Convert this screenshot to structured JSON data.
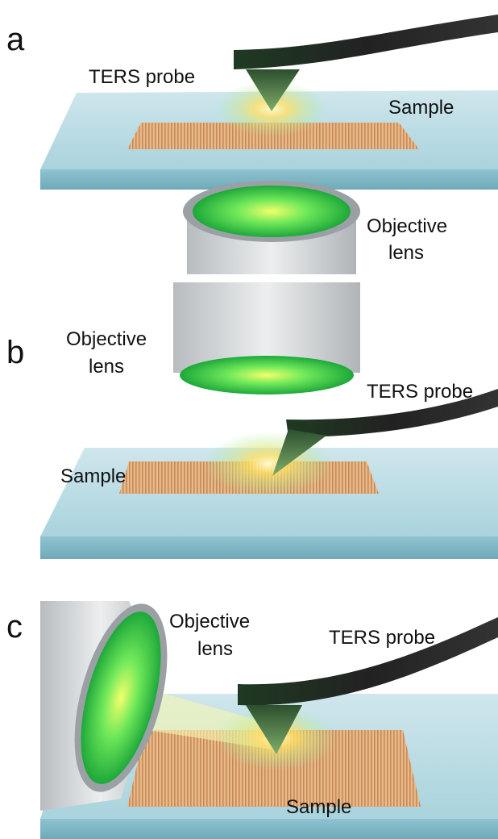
{
  "panels": [
    {
      "label": "a",
      "probe": "TERS probe",
      "sample": "Sample",
      "lens": [
        "Objective",
        "lens"
      ]
    },
    {
      "label": "b",
      "probe": "TERS probe",
      "sample": "Sample",
      "lens": [
        "Objective",
        "lens"
      ]
    },
    {
      "label": "c",
      "probe": "TERS probe",
      "sample": "Sample",
      "lens": [
        "Objective",
        "lens"
      ]
    }
  ]
}
